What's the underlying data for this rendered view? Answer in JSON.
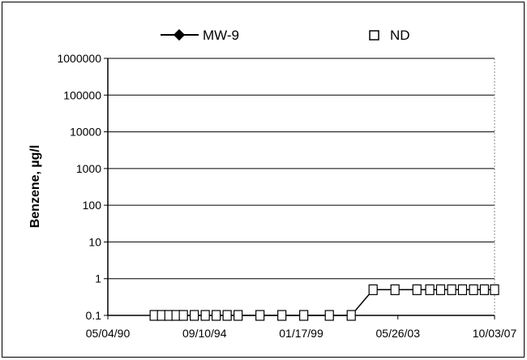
{
  "chart_data": {
    "type": "line",
    "title": "",
    "xlabel": "",
    "ylabel": "Benzene, µg/l",
    "y_scale": "log",
    "ylim": [
      0.1,
      1000000
    ],
    "y_ticks": [
      "0.1",
      "1",
      "10",
      "100",
      "1000",
      "10000",
      "100000",
      "1000000"
    ],
    "x_ticks": [
      "05/04/90",
      "09/10/94",
      "01/17/99",
      "05/26/03",
      "10/03/07"
    ],
    "xlim": [
      "1990-05-04",
      "2008-01-01"
    ],
    "grid": true,
    "legend_position": "top",
    "legend": [
      {
        "label": "MW-9",
        "marker": "filled-diamond-with-line"
      },
      {
        "label": "ND",
        "marker": "open-square"
      }
    ],
    "series": [
      {
        "name": "MW-9",
        "points": [
          {
            "x": "1992-06-15",
            "y": 0.1,
            "nd": true
          },
          {
            "x": "1992-10-15",
            "y": 0.1,
            "nd": true
          },
          {
            "x": "1993-02-15",
            "y": 0.1,
            "nd": true
          },
          {
            "x": "1993-06-15",
            "y": 0.1,
            "nd": true
          },
          {
            "x": "1993-10-15",
            "y": 0.1,
            "nd": true
          },
          {
            "x": "1994-04-15",
            "y": 0.1,
            "nd": true
          },
          {
            "x": "1994-10-15",
            "y": 0.1,
            "nd": true
          },
          {
            "x": "1995-04-15",
            "y": 0.1,
            "nd": true
          },
          {
            "x": "1995-10-15",
            "y": 0.1,
            "nd": true
          },
          {
            "x": "1996-04-15",
            "y": 0.1,
            "nd": true
          },
          {
            "x": "1997-04-15",
            "y": 0.1,
            "nd": true
          },
          {
            "x": "1998-04-15",
            "y": 0.1,
            "nd": true
          },
          {
            "x": "1999-04-15",
            "y": 0.1,
            "nd": true
          },
          {
            "x": "2000-06-15",
            "y": 0.1,
            "nd": true
          },
          {
            "x": "2001-06-15",
            "y": 0.1,
            "nd": true
          },
          {
            "x": "2002-06-15",
            "y": 0.5,
            "nd": true
          },
          {
            "x": "2003-06-15",
            "y": 0.5,
            "nd": true
          },
          {
            "x": "2004-06-15",
            "y": 0.5,
            "nd": true
          },
          {
            "x": "2005-01-15",
            "y": 0.5,
            "nd": true
          },
          {
            "x": "2005-07-15",
            "y": 0.5,
            "nd": true
          },
          {
            "x": "2006-01-15",
            "y": 0.5,
            "nd": true
          },
          {
            "x": "2006-07-15",
            "y": 0.5,
            "nd": true
          },
          {
            "x": "2007-01-15",
            "y": 0.5,
            "nd": true
          },
          {
            "x": "2007-07-15",
            "y": 0.5,
            "nd": true
          },
          {
            "x": "2008-01-01",
            "y": 0.5,
            "nd": true
          }
        ]
      }
    ]
  }
}
